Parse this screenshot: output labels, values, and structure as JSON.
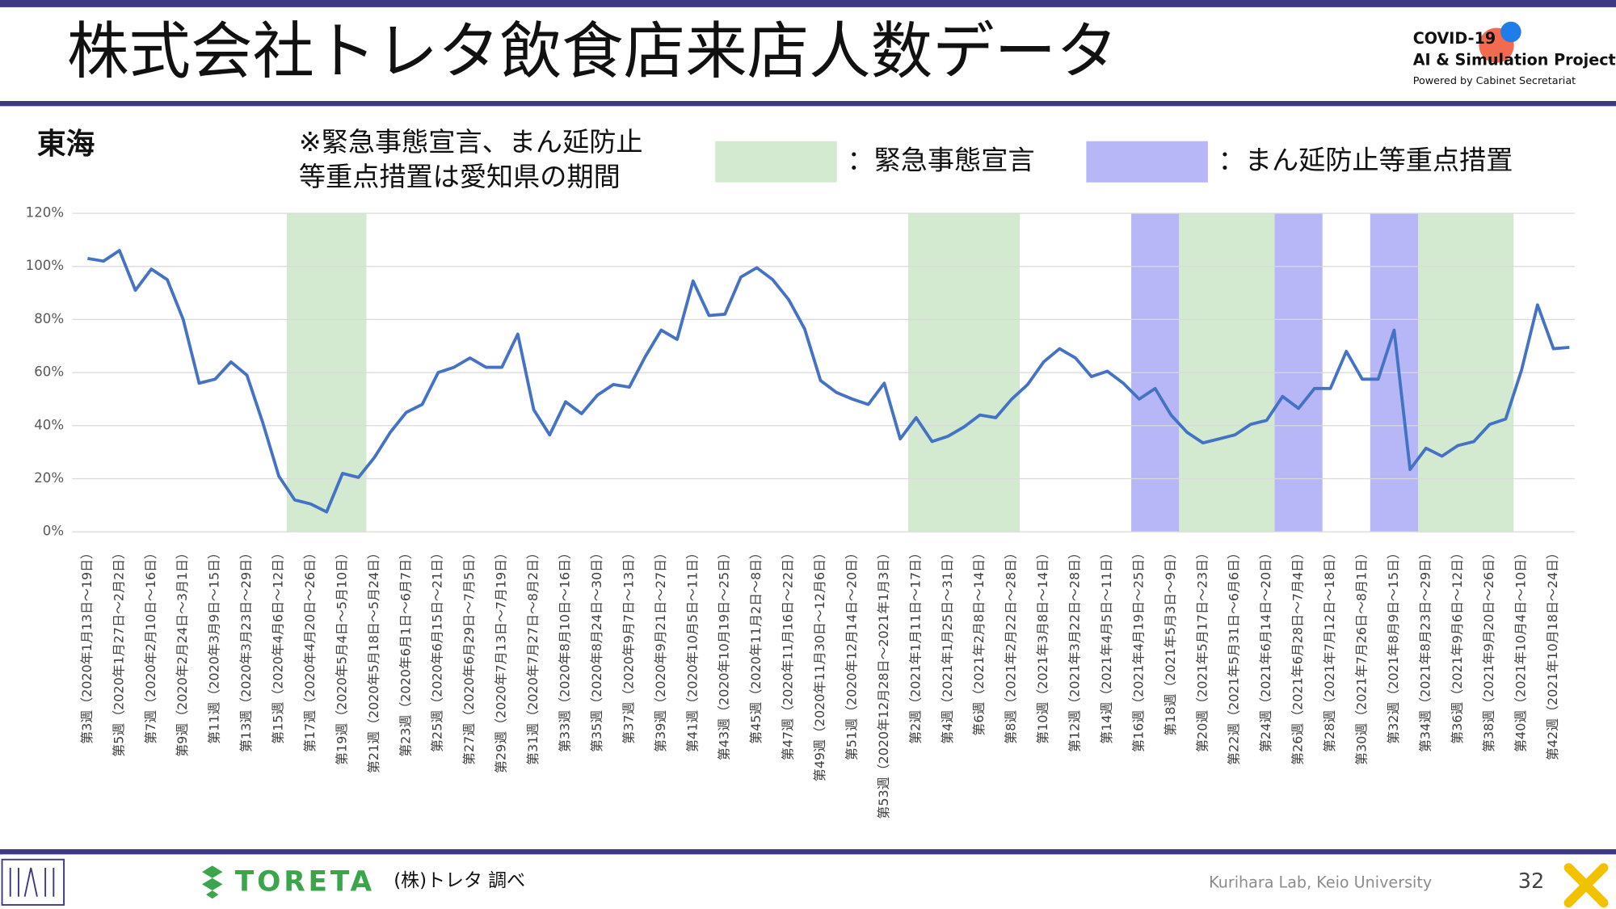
{
  "header": {
    "title": "株式会社トレタ飲食店来店人数データ",
    "logo_line1": "COVID-19",
    "logo_line2": "AI & Simulation Project",
    "logo_line3": "Powered by Cabinet Secretariat"
  },
  "chart_data": {
    "type": "line",
    "title": "東海",
    "note_lines": [
      "※緊急事態宣言、まん延防止",
      "等重点措置は愛知県の期間"
    ],
    "categories": [
      "第3週（2020年1月13日～19日）",
      null,
      "第5週（2020年1月27日～2月2日）",
      null,
      "第7週（2020年2月10日～16日）",
      null,
      "第9週（2020年2月24日～3月1日）",
      null,
      "第11週（2020年3月9日～15日）",
      null,
      "第13週（2020年3月23日～29日）",
      null,
      "第15週（2020年4月6日～12日）",
      null,
      "第17週（2020年4月20日～26日）",
      null,
      "第19週（2020年5月4日～5月10日）",
      null,
      "第21週（2020年5月18日～5月24日）",
      null,
      "第23週（2020年6月1日～6月7日）",
      null,
      "第25週（2020年6月15日～21日）",
      null,
      "第27週（2020年6月29日～7月5日）",
      null,
      "第29週（2020年7月13日～7月19日）",
      null,
      "第31週（2020年7月27日～8月2日）",
      null,
      "第33週（2020年8月10日～16日）",
      null,
      "第35週（2020年8月24日～30日）",
      null,
      "第37週（2020年9月7日～13日）",
      null,
      "第39週（2020年9月21日～27日）",
      null,
      "第41週（2020年10月5日～11日）",
      null,
      "第43週（2020年10月19日～25日）",
      null,
      "第45週（2020年11月2日～8日）",
      null,
      "第47週（2020年11月16日～22日）",
      null,
      "第49週（2020年11月30日～12月6日）",
      null,
      "第51週（2020年12月14日～20日）",
      null,
      "第53週（2020年12月28日～2021年1月3日）",
      null,
      "第2週（2021年1月11日～17日）",
      null,
      "第4週（2021年1月25日～31日）",
      null,
      "第6週（2021年2月8日～14日）",
      null,
      "第8週（2021年2月22日～28日）",
      null,
      "第10週（2021年3月8日～14日）",
      null,
      "第12週（2021年3月22日～28日）",
      null,
      "第14週（2021年4月5日～11日）",
      null,
      "第16週（2021年4月19日～25日）",
      null,
      "第18週（2021年5月3日～9日）",
      null,
      "第20週（2021年5月17日～23日）",
      null,
      "第22週（2021年5月31日～6月6日）",
      null,
      "第24週（2021年6月14日～20日）",
      null,
      "第26週（2021年6月28日～7月4日）",
      null,
      "第28週（2021年7月12日～18日）",
      null,
      "第30週（2021年7月26日～8月1日）",
      null,
      "第32週（2021年8月9日～15日）",
      null,
      "第34週（2021年8月23日～29日）",
      null,
      "第36週（2021年9月6日～12日）",
      null,
      "第38週（2021年9月20日～26日）",
      null,
      "第40週（2021年10月4日～10日）",
      null,
      "第42週（2021年10月18日～24日）",
      null
    ],
    "series": [
      {
        "color": "#4472c4",
        "values": [
          103,
          102,
          106,
          91,
          99,
          95,
          80,
          56,
          57.5,
          64,
          59,
          41,
          21,
          12,
          10.5,
          7.5,
          22,
          20.5,
          28,
          37.5,
          45,
          48,
          60,
          62,
          65.5,
          62,
          62,
          74.5,
          46,
          36.5,
          49,
          44.5,
          51.5,
          55.5,
          54.5,
          66,
          76,
          72.5,
          94.5,
          81.5,
          82,
          96,
          99.5,
          95,
          87.5,
          76.5,
          57,
          52.5,
          50,
          48,
          56,
          35,
          43,
          34,
          36,
          39.5,
          44,
          43,
          50,
          55.5,
          64,
          69,
          65.5,
          58.5,
          60.5,
          56,
          50,
          54,
          44,
          37.5,
          33.5,
          35,
          36.5,
          40.5,
          42,
          51,
          46.5,
          54,
          54,
          68,
          57.5,
          57.5,
          76,
          23.5,
          31.5,
          28.5,
          32.5,
          34,
          40.5,
          42.5,
          61,
          85.5,
          69,
          69.5
        ]
      }
    ],
    "periods": [
      {
        "name": "：緊急事態宣言",
        "color": "#d3ead0",
        "ranges": [
          [
            13,
            17
          ],
          [
            52,
            58
          ],
          [
            69,
            74
          ],
          [
            84,
            89
          ]
        ]
      },
      {
        "name": "：まん延防止等重点措置",
        "color": "#b7b7f7",
        "ranges": [
          [
            66,
            68
          ],
          [
            75,
            77
          ],
          [
            81,
            83
          ]
        ]
      }
    ],
    "ylim": [
      0,
      120
    ],
    "yticks": [
      {
        "value": 0,
        "label": "0%"
      },
      {
        "value": 20,
        "label": "20%"
      },
      {
        "value": 40,
        "label": "40%"
      },
      {
        "value": 60,
        "label": "60%"
      },
      {
        "value": 80,
        "label": "80%"
      },
      {
        "value": 100,
        "label": "100%"
      },
      {
        "value": 120,
        "label": "120%"
      }
    ],
    "grid": true
  },
  "footer": {
    "brand": "TORETA",
    "source": "(株)トレタ 調べ",
    "lab": "Kurihara Lab, Keio University",
    "page": "32"
  }
}
